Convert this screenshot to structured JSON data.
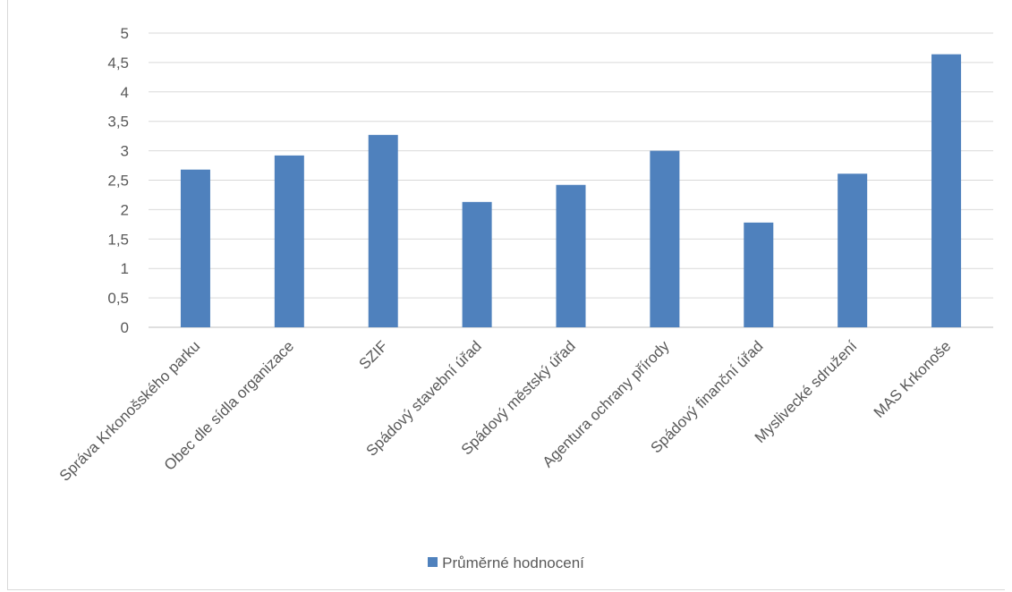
{
  "chart_data": {
    "type": "bar",
    "categories": [
      "Správa Krkonošského parku",
      "Obec dle sídla organizace",
      "SZIF",
      "Spádový stavební úřad",
      "Spádový městský úřad",
      "Agentura ochrany přírody",
      "Spádový finanční úřad",
      "Myslivecké sdružení",
      "MAS Krkonoše"
    ],
    "series": [
      {
        "name": "Průměrné hodnocení",
        "values": [
          2.68,
          2.92,
          3.27,
          2.13,
          2.42,
          3.0,
          1.78,
          2.61,
          4.64
        ]
      }
    ],
    "ylim": [
      0,
      5
    ],
    "yticks": [
      "0",
      "0,5",
      "1",
      "1,5",
      "2",
      "2,5",
      "3",
      "3,5",
      "4",
      "4,5",
      "5"
    ],
    "grid": true,
    "legend_position": "bottom",
    "color": "#4f81bd"
  }
}
